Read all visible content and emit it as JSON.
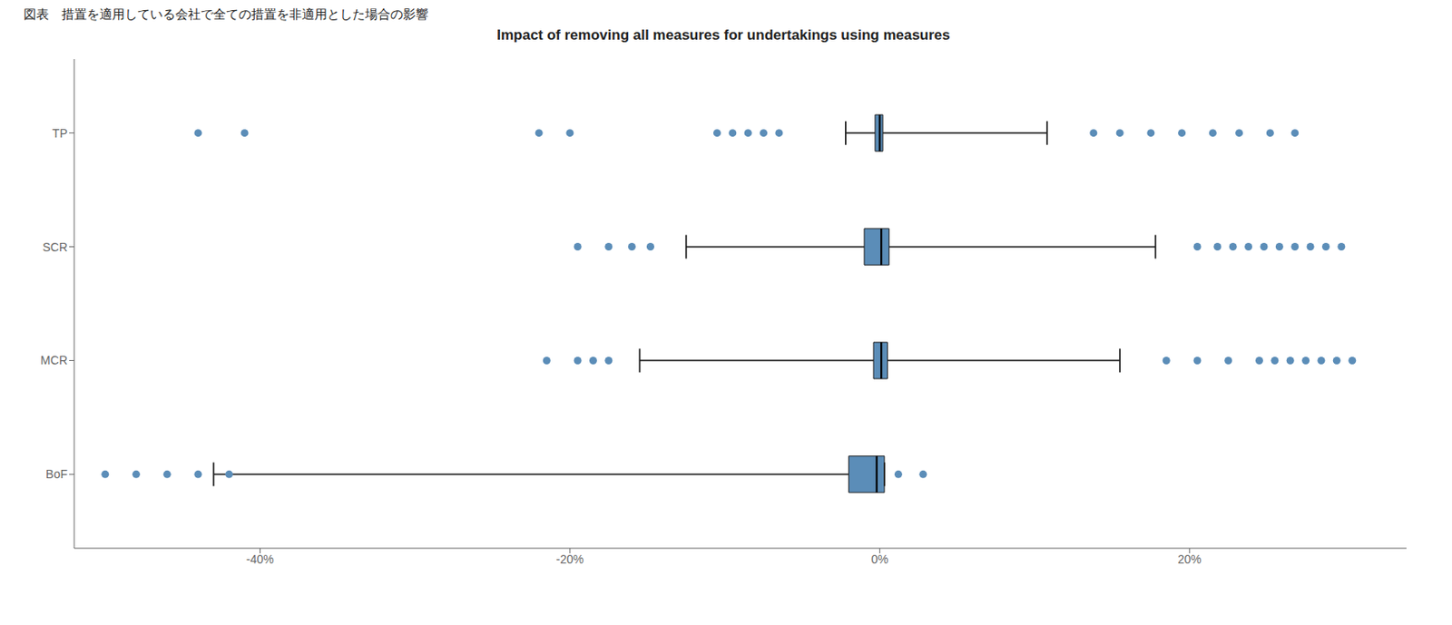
{
  "chart_data": {
    "type": "box",
    "title": "Impact of removing all measures for undertakings using measures",
    "subtitle": "図表　措置を適用している会社で全ての措置を非適用とした場合の影響",
    "categories": [
      "BoF",
      "MCR",
      "SCR",
      "TP"
    ],
    "color": "#5b8db8",
    "xlim": [
      -0.52,
      0.34
    ],
    "xticks": [
      {
        "value": -0.4,
        "label": "-40%"
      },
      {
        "value": -0.2,
        "label": "-20%"
      },
      {
        "value": 0.0,
        "label": "0%"
      },
      {
        "value": 0.2,
        "label": "20%"
      }
    ],
    "boxes": [
      {
        "q1": -0.02,
        "median": -0.002,
        "q3": 0.003,
        "whisker_low": -0.43,
        "whisker_high": 0.003,
        "fliers": [
          -0.5,
          -0.48,
          -0.46,
          -0.44,
          -0.42,
          0.012,
          0.028
        ]
      },
      {
        "q1": -0.004,
        "median": 0.001,
        "q3": 0.005,
        "whisker_low": -0.155,
        "whisker_high": 0.155,
        "fliers": [
          -0.215,
          -0.195,
          -0.185,
          -0.175,
          0.185,
          0.205,
          0.225,
          0.245,
          0.255,
          0.265,
          0.275,
          0.285,
          0.295,
          0.305
        ]
      },
      {
        "q1": -0.01,
        "median": 0.001,
        "q3": 0.006,
        "whisker_low": -0.125,
        "whisker_high": 0.178,
        "fliers": [
          -0.195,
          -0.175,
          -0.16,
          -0.148,
          0.205,
          0.218,
          0.228,
          0.238,
          0.248,
          0.258,
          0.268,
          0.278,
          0.288,
          0.298
        ]
      },
      {
        "q1": -0.003,
        "median": 0.0,
        "q3": 0.002,
        "whisker_low": -0.022,
        "whisker_high": 0.108,
        "fliers": [
          -0.44,
          -0.41,
          -0.22,
          -0.2,
          -0.105,
          -0.095,
          -0.085,
          -0.075,
          -0.065,
          0.138,
          0.155,
          0.175,
          0.195,
          0.215,
          0.232,
          0.252,
          0.268
        ]
      }
    ]
  }
}
